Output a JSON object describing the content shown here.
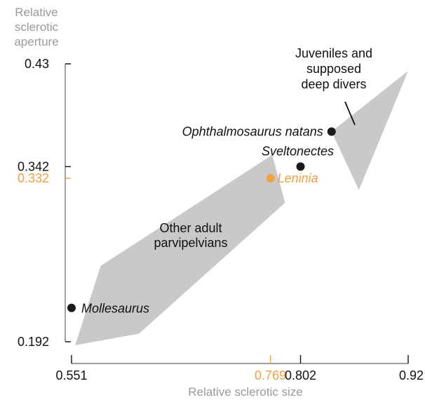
{
  "chart_data": {
    "type": "scatter",
    "title": "",
    "xlabel": "Relative sclerotic size",
    "ylabel_lines": [
      "Relative",
      "sclerotic",
      "aperture"
    ],
    "xlim": [
      0.551,
      0.92
    ],
    "ylim": [
      0.192,
      0.43
    ],
    "grid": false,
    "x_ticks": [
      {
        "value": 0.551,
        "label": "0.551",
        "highlight": false
      },
      {
        "value": 0.769,
        "label": "0.769",
        "highlight": true
      },
      {
        "value": 0.802,
        "label": "0.802",
        "highlight": false
      },
      {
        "value": 0.92,
        "label": "0.92",
        "highlight": false
      }
    ],
    "y_ticks": [
      {
        "value": 0.43,
        "label": "0.43",
        "highlight": false
      },
      {
        "value": 0.342,
        "label": "0.342",
        "highlight": false
      },
      {
        "value": 0.332,
        "label": "0.332",
        "highlight": true
      },
      {
        "value": 0.192,
        "label": "0.192",
        "highlight": false
      }
    ],
    "points": [
      {
        "name": "Ophthalmosaurus natans",
        "x": 0.836,
        "y": 0.372,
        "highlight": false
      },
      {
        "name": "Sveltonectes",
        "x": 0.802,
        "y": 0.342,
        "highlight": false
      },
      {
        "name": "Leninia",
        "x": 0.769,
        "y": 0.332,
        "highlight": true
      },
      {
        "name": "Mollesaurus",
        "x": 0.551,
        "y": 0.221,
        "highlight": false
      }
    ],
    "regions": [
      {
        "label_lines": [
          "Other adult",
          "parvipelvians"
        ],
        "polygon": [
          [
            0.555,
            0.189
          ],
          [
            0.625,
            0.199
          ],
          [
            0.785,
            0.311
          ],
          [
            0.771,
            0.352
          ],
          [
            0.583,
            0.257
          ]
        ]
      },
      {
        "label_lines": [
          "Juveniles and",
          "supposed",
          "deep divers"
        ],
        "polygon": [
          [
            0.836,
            0.372
          ],
          [
            0.92,
            0.424
          ],
          [
            0.866,
            0.322
          ]
        ]
      }
    ],
    "colors": {
      "point": "#1a1a1a",
      "highlight": "#f0a040",
      "region": "#c9c9c9",
      "axis": "#666666",
      "axis_label": "#9a9a9a"
    }
  }
}
